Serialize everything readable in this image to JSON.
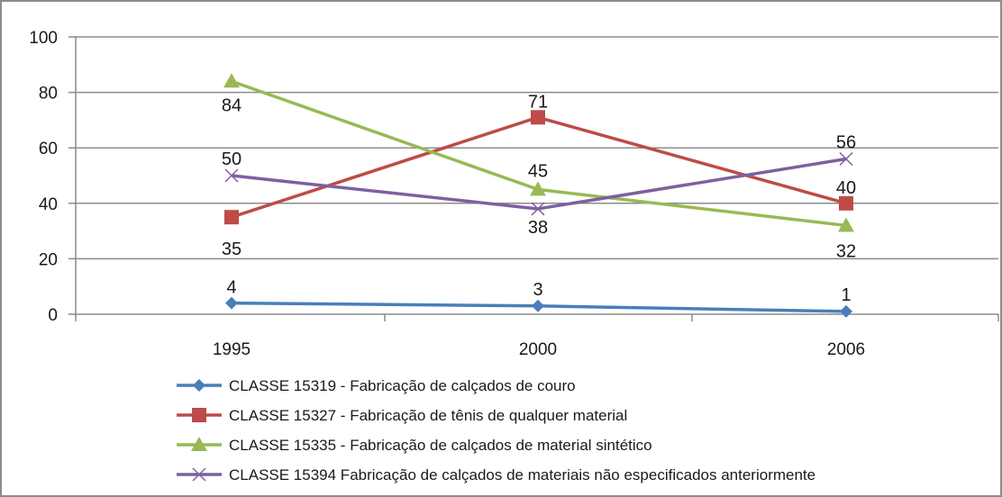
{
  "chart_data": {
    "type": "line",
    "categories": [
      "1995",
      "2000",
      "2006"
    ],
    "ylim": [
      0,
      100
    ],
    "yticks": [
      "0",
      "20",
      "40",
      "60",
      "80",
      "100"
    ],
    "grid": true,
    "legend_position": "bottom",
    "series": [
      {
        "name": "CLASSE 15319 - Fabricação de calçados de couro",
        "values": [
          4,
          3,
          1
        ],
        "color": "#4a7ebb",
        "marker": "diamond"
      },
      {
        "name": "CLASSE 15327 - Fabricação de tênis de qualquer material",
        "values": [
          35,
          71,
          40
        ],
        "color": "#be4b48",
        "marker": "square"
      },
      {
        "name": "CLASSE 15335 - Fabricação de calçados de material sintético",
        "values": [
          84,
          45,
          32
        ],
        "color": "#98b954",
        "marker": "triangle"
      },
      {
        "name": "CLASSE 15394   Fabricação de calçados de materiais não especificados anteriormente",
        "values": [
          50,
          38,
          56
        ],
        "color": "#7d60a0",
        "marker": "x"
      }
    ]
  }
}
